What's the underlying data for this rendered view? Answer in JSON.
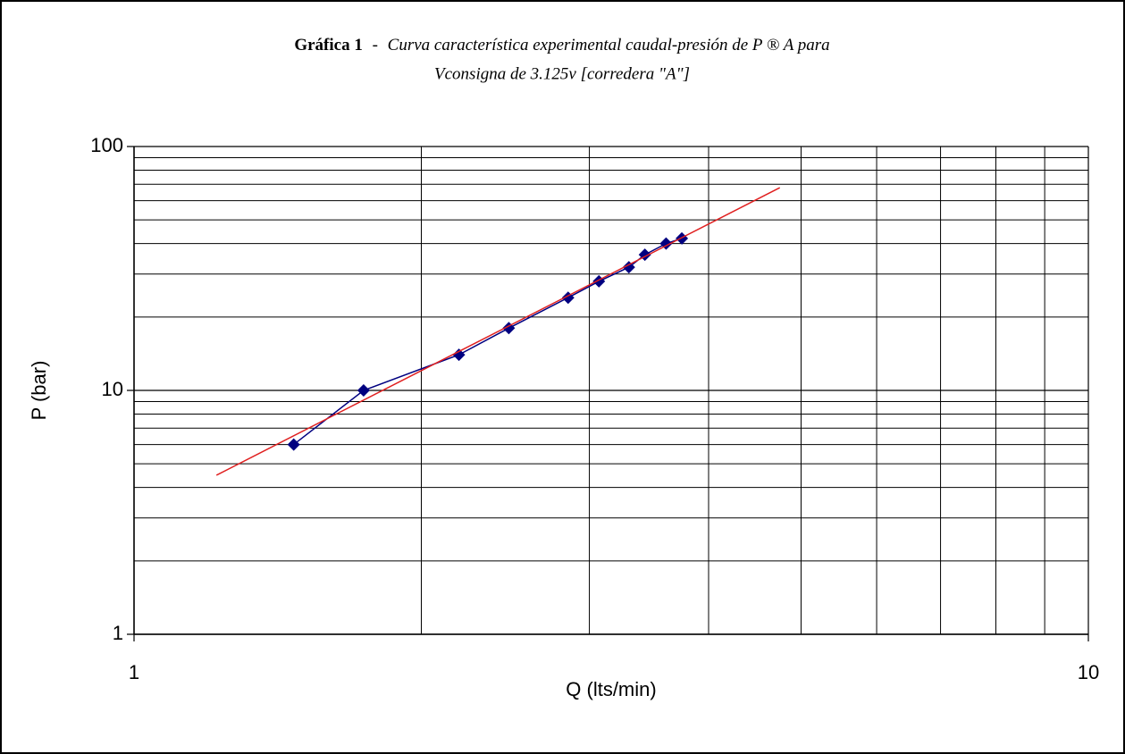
{
  "chart_data": {
    "type": "line",
    "title_prefix": "Gráfica 1",
    "title_separator": "-",
    "title_lines": [
      "Curva característica experimental caudal-presión de P ® A para",
      "Vconsigna de 3.125v [corredera \"A\"]"
    ],
    "xlabel": "Q (lts/min)",
    "ylabel": "P (bar)",
    "log_x": true,
    "log_y": true,
    "grid": true,
    "xlim": [
      1,
      10
    ],
    "xticks": [
      1,
      10
    ],
    "x_minor_grid": [
      2,
      3,
      4,
      5,
      6,
      7,
      8,
      9
    ],
    "ylim": [
      1,
      100
    ],
    "yticks": [
      1,
      10,
      100
    ],
    "y_minor_grid": [
      2,
      3,
      4,
      5,
      6,
      7,
      8,
      9,
      20,
      30,
      40,
      50,
      60,
      70,
      80,
      90
    ],
    "series": [
      {
        "color": "#000080",
        "marker": "diamond",
        "x": [
          1.47,
          1.74,
          2.19,
          2.47,
          2.85,
          3.07,
          3.3,
          3.43,
          3.61,
          3.75
        ],
        "values": [
          6,
          10,
          14,
          18,
          24,
          28,
          32,
          36,
          40,
          42
        ]
      },
      {
        "color": "#e02020",
        "marker": "none",
        "x": [
          1.22,
          4.75
        ],
        "values": [
          4.49,
          67.8
        ]
      }
    ]
  }
}
